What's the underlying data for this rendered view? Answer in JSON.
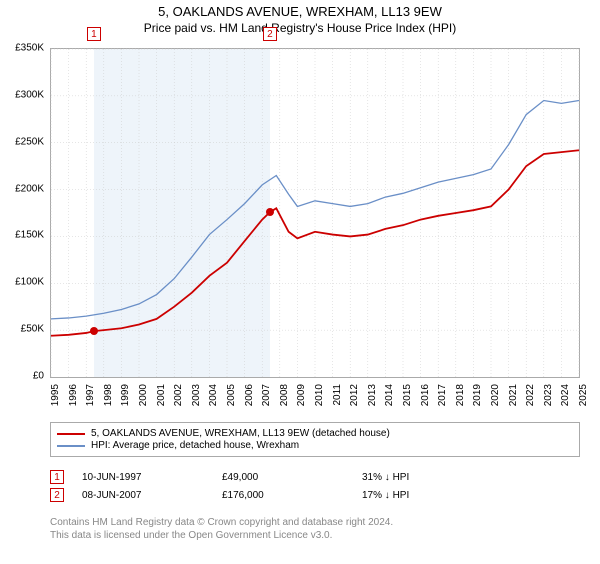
{
  "title": "5, OAKLANDS AVENUE, WREXHAM, LL13 9EW",
  "subtitle": "Price paid vs. HM Land Registry's House Price Index (HPI)",
  "chart": {
    "type": "line",
    "background_color": "#ffffff",
    "border_color": "#aaaaaa",
    "grid_color": "#cccccc",
    "shade_color": "#eef4fa",
    "ylim": [
      0,
      350000
    ],
    "ytick_step": 50000,
    "yticks": [
      "£0",
      "£50K",
      "£100K",
      "£150K",
      "£200K",
      "£250K",
      "£300K",
      "£350K"
    ],
    "xlim": [
      1995,
      2025
    ],
    "xticks": [
      "1995",
      "1996",
      "1997",
      "1998",
      "1999",
      "2000",
      "2001",
      "2002",
      "2003",
      "2004",
      "2005",
      "2006",
      "2007",
      "2008",
      "2009",
      "2010",
      "2011",
      "2012",
      "2013",
      "2014",
      "2015",
      "2016",
      "2017",
      "2018",
      "2019",
      "2020",
      "2021",
      "2022",
      "2023",
      "2024",
      "2025"
    ],
    "shade_start": 1997.44,
    "shade_end": 2007.44,
    "series": [
      {
        "name": "price_paid",
        "label": "5, OAKLANDS AVENUE, WREXHAM, LL13 9EW (detached house)",
        "color": "#cc0000",
        "width": 1.8,
        "x": [
          1995,
          1996,
          1997,
          1997.44,
          1998,
          1999,
          2000,
          2001,
          2002,
          2003,
          2004,
          2005,
          2006,
          2007,
          2007.44,
          2007.8,
          2008.5,
          2009,
          2010,
          2011,
          2012,
          2013,
          2014,
          2015,
          2016,
          2017,
          2018,
          2019,
          2020,
          2021,
          2022,
          2023,
          2024,
          2025
        ],
        "y": [
          44000,
          45000,
          47000,
          49000,
          50000,
          52000,
          56000,
          62000,
          75000,
          90000,
          108000,
          122000,
          145000,
          168000,
          176000,
          180000,
          155000,
          148000,
          155000,
          152000,
          150000,
          152000,
          158000,
          162000,
          168000,
          172000,
          175000,
          178000,
          182000,
          200000,
          225000,
          238000,
          240000,
          242000
        ]
      },
      {
        "name": "hpi",
        "label": "HPI: Average price, detached house, Wrexham",
        "color": "#6a8fc7",
        "width": 1.3,
        "x": [
          1995,
          1996,
          1997,
          1998,
          1999,
          2000,
          2001,
          2002,
          2003,
          2004,
          2005,
          2006,
          2007,
          2007.8,
          2008.5,
          2009,
          2010,
          2011,
          2012,
          2013,
          2014,
          2015,
          2016,
          2017,
          2018,
          2019,
          2020,
          2021,
          2022,
          2023,
          2024,
          2025
        ],
        "y": [
          62000,
          63000,
          65000,
          68000,
          72000,
          78000,
          88000,
          105000,
          128000,
          152000,
          168000,
          185000,
          205000,
          215000,
          195000,
          182000,
          188000,
          185000,
          182000,
          185000,
          192000,
          196000,
          202000,
          208000,
          212000,
          216000,
          222000,
          248000,
          280000,
          295000,
          292000,
          295000
        ]
      }
    ],
    "markers": [
      {
        "id": "1",
        "x": 1997.44,
        "y": 49000
      },
      {
        "id": "2",
        "x": 2007.44,
        "y": 176000
      }
    ]
  },
  "legend": {
    "items": [
      {
        "color": "#cc0000",
        "label": "5, OAKLANDS AVENUE, WREXHAM, LL13 9EW (detached house)"
      },
      {
        "color": "#6a8fc7",
        "label": "HPI: Average price, detached house, Wrexham"
      }
    ]
  },
  "events": [
    {
      "id": "1",
      "date": "10-JUN-1997",
      "price": "£49,000",
      "delta": "31% ↓ HPI"
    },
    {
      "id": "2",
      "date": "08-JUN-2007",
      "price": "£176,000",
      "delta": "17% ↓ HPI"
    }
  ],
  "footnote": {
    "line1": "Contains HM Land Registry data © Crown copyright and database right 2024.",
    "line2": "This data is licensed under the Open Government Licence v3.0."
  }
}
